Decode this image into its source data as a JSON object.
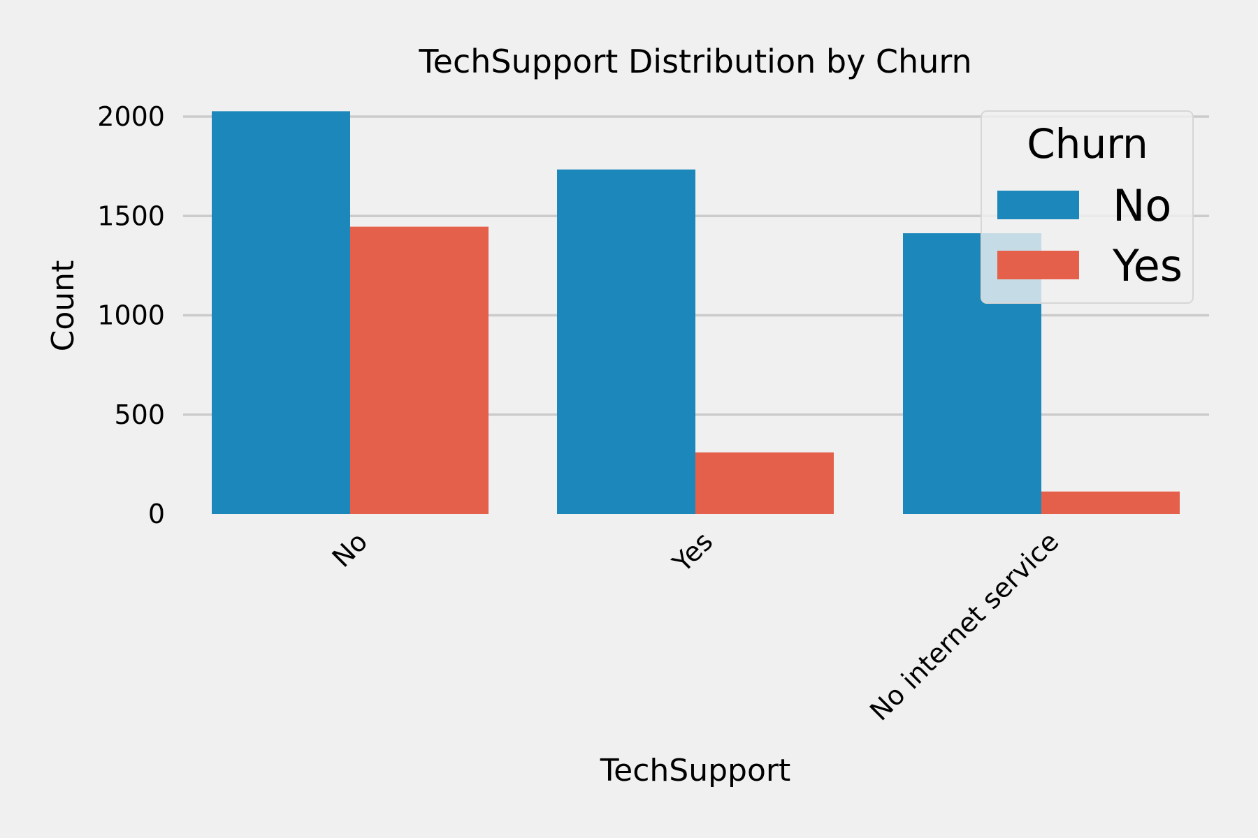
{
  "chart_data": {
    "type": "bar",
    "title": "TechSupport Distribution by Churn",
    "xlabel": "TechSupport",
    "ylabel": "Count",
    "categories": [
      "No",
      "Yes",
      "No internet service"
    ],
    "series": [
      {
        "name": "No",
        "values": [
          2027,
          1734,
          1413
        ]
      },
      {
        "name": "Yes",
        "values": [
          1446,
          310,
          113
        ]
      }
    ],
    "ylim": [
      0,
      2000
    ],
    "yticks": [
      0,
      500,
      1000,
      1500,
      2000
    ],
    "ytick_labels": [
      "0",
      "500",
      "1000",
      "1500",
      "2000"
    ],
    "grid": "horizontal",
    "legend": {
      "title": "Churn",
      "placement": "top-right"
    },
    "colors": {
      "No": "#1c87bb",
      "Yes": "#e5604a"
    },
    "background": "#f0f0f0"
  }
}
